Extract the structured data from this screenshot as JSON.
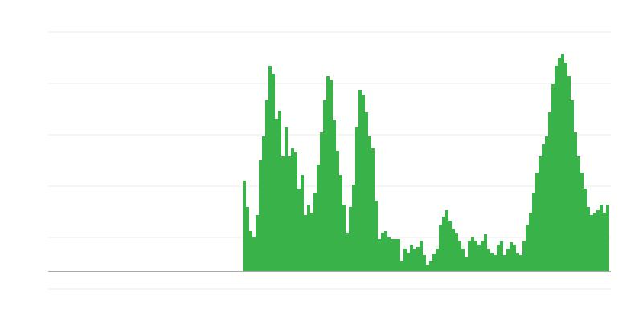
{
  "chart_data": {
    "type": "bar",
    "title": "",
    "xlabel": "",
    "ylabel": "",
    "grid": true,
    "bar_color": "#39b24a",
    "grid_color": "#eeeeee",
    "axis_color": "#aaaaaa",
    "ylim": [
      0,
      298
    ],
    "leading_empty_bars": 60,
    "values": [
      113,
      80,
      50,
      43,
      70,
      138,
      168,
      213,
      256,
      246,
      190,
      200,
      143,
      180,
      143,
      153,
      148,
      103,
      120,
      70,
      83,
      73,
      98,
      133,
      173,
      213,
      243,
      238,
      188,
      150,
      120,
      83,
      48,
      80,
      108,
      180,
      226,
      220,
      198,
      168,
      153,
      88,
      40,
      48,
      50,
      43,
      40,
      40,
      40,
      13,
      28,
      23,
      33,
      28,
      30,
      38,
      20,
      8,
      13,
      22,
      28,
      58,
      68,
      76,
      63,
      53,
      48,
      38,
      28,
      18,
      38,
      43,
      38,
      33,
      38,
      46,
      28,
      23,
      20,
      33,
      38,
      20,
      28,
      36,
      33,
      23,
      20,
      38,
      58,
      73,
      98,
      123,
      143,
      158,
      168,
      198,
      233,
      256,
      266,
      271,
      260,
      243,
      213,
      173,
      143,
      123,
      103,
      80,
      70,
      73,
      76,
      83,
      73,
      83
    ]
  }
}
